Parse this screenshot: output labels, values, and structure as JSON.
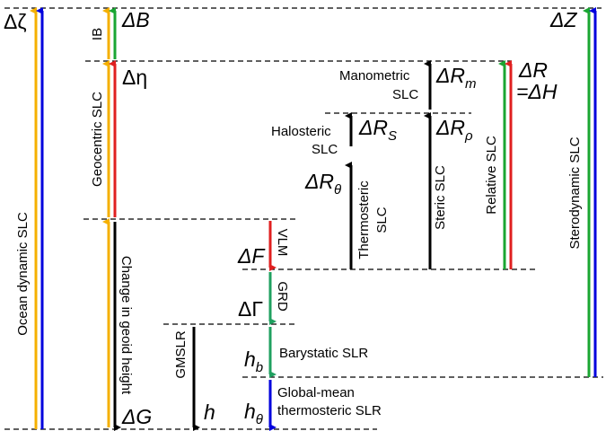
{
  "colors": {
    "orange": "#f5b000",
    "blue": "#0000dd",
    "green": "#1aa632",
    "red": "#e02020",
    "black": "#000000",
    "teal": "#20a060"
  },
  "labels": {
    "ocean_dynamic": "Ocean dynamic SLC",
    "ib": "IB",
    "geocentric": "Geocentric SLC",
    "geoid": "Change in geoid height",
    "vlm": "VLM",
    "grd": "GRD",
    "gmslr": "GMSLR",
    "barystatic": "Barystatic SLR",
    "global_mean_1": "Global-mean",
    "global_mean_2": "thermosteric SLR",
    "thermosteric_1": "Thermosteric",
    "thermosteric_2": "SLC",
    "halosteric_1": "Halosteric",
    "halosteric_2": "SLC",
    "manometric_1": "Manometric",
    "manometric_2": "SLC",
    "steric": "Steric SLC",
    "relative": "Relative SLC",
    "sterodynamic": "Sterodynamic SLC"
  },
  "symbols": {
    "dzeta": "Δζ",
    "dB": "ΔB",
    "deta": "Δη",
    "dG": "ΔG",
    "dF": "ΔF",
    "dGamma": "ΔΓ",
    "h": "h",
    "hb": "h",
    "hb_sub": "b",
    "htheta": "h",
    "htheta_sub": "θ",
    "dRtheta": "ΔR",
    "dRtheta_sub": "θ",
    "dRS": "ΔR",
    "dRS_sub": "S",
    "dRrho": "ΔR",
    "dRrho_sub": "ρ",
    "dRm": "ΔR",
    "dRm_sub": "m",
    "dR": "ΔR",
    "eqdH": "=ΔH",
    "dZ": "ΔZ"
  }
}
